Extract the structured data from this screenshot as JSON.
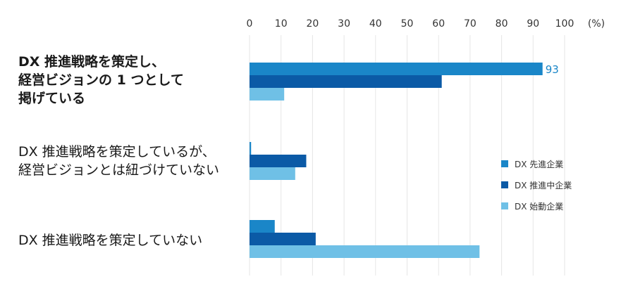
{
  "chart_data": {
    "type": "bar",
    "orientation": "horizontal",
    "categories": [
      "DX 推進戦略を策定し、\n経営ビジョンの 1 つとして\n掲げている",
      "DX 推進戦略を策定しているが、\n経営ビジョンとは紐づけていない",
      "DX 推進戦略を策定していない"
    ],
    "category_bold": [
      true,
      false,
      false
    ],
    "series": [
      {
        "name": "DX 先進企業",
        "color": "#1a86c8",
        "values": [
          93,
          0.5,
          8
        ]
      },
      {
        "name": "DX 推進中企業",
        "color": "#0b5aa6",
        "values": [
          61,
          18,
          21
        ]
      },
      {
        "name": "DX 始動企業",
        "color": "#6fc0e6",
        "values": [
          11,
          14.5,
          73
        ]
      }
    ],
    "data_labels": [
      {
        "series": 0,
        "category": 0,
        "text": "93"
      }
    ],
    "xlim": [
      0,
      100
    ],
    "xticks": [
      "0",
      "10",
      "20",
      "30",
      "40",
      "50",
      "60",
      "70",
      "80",
      "90",
      "100"
    ],
    "unit": "(%)",
    "grid": true,
    "legend_position": "right"
  }
}
